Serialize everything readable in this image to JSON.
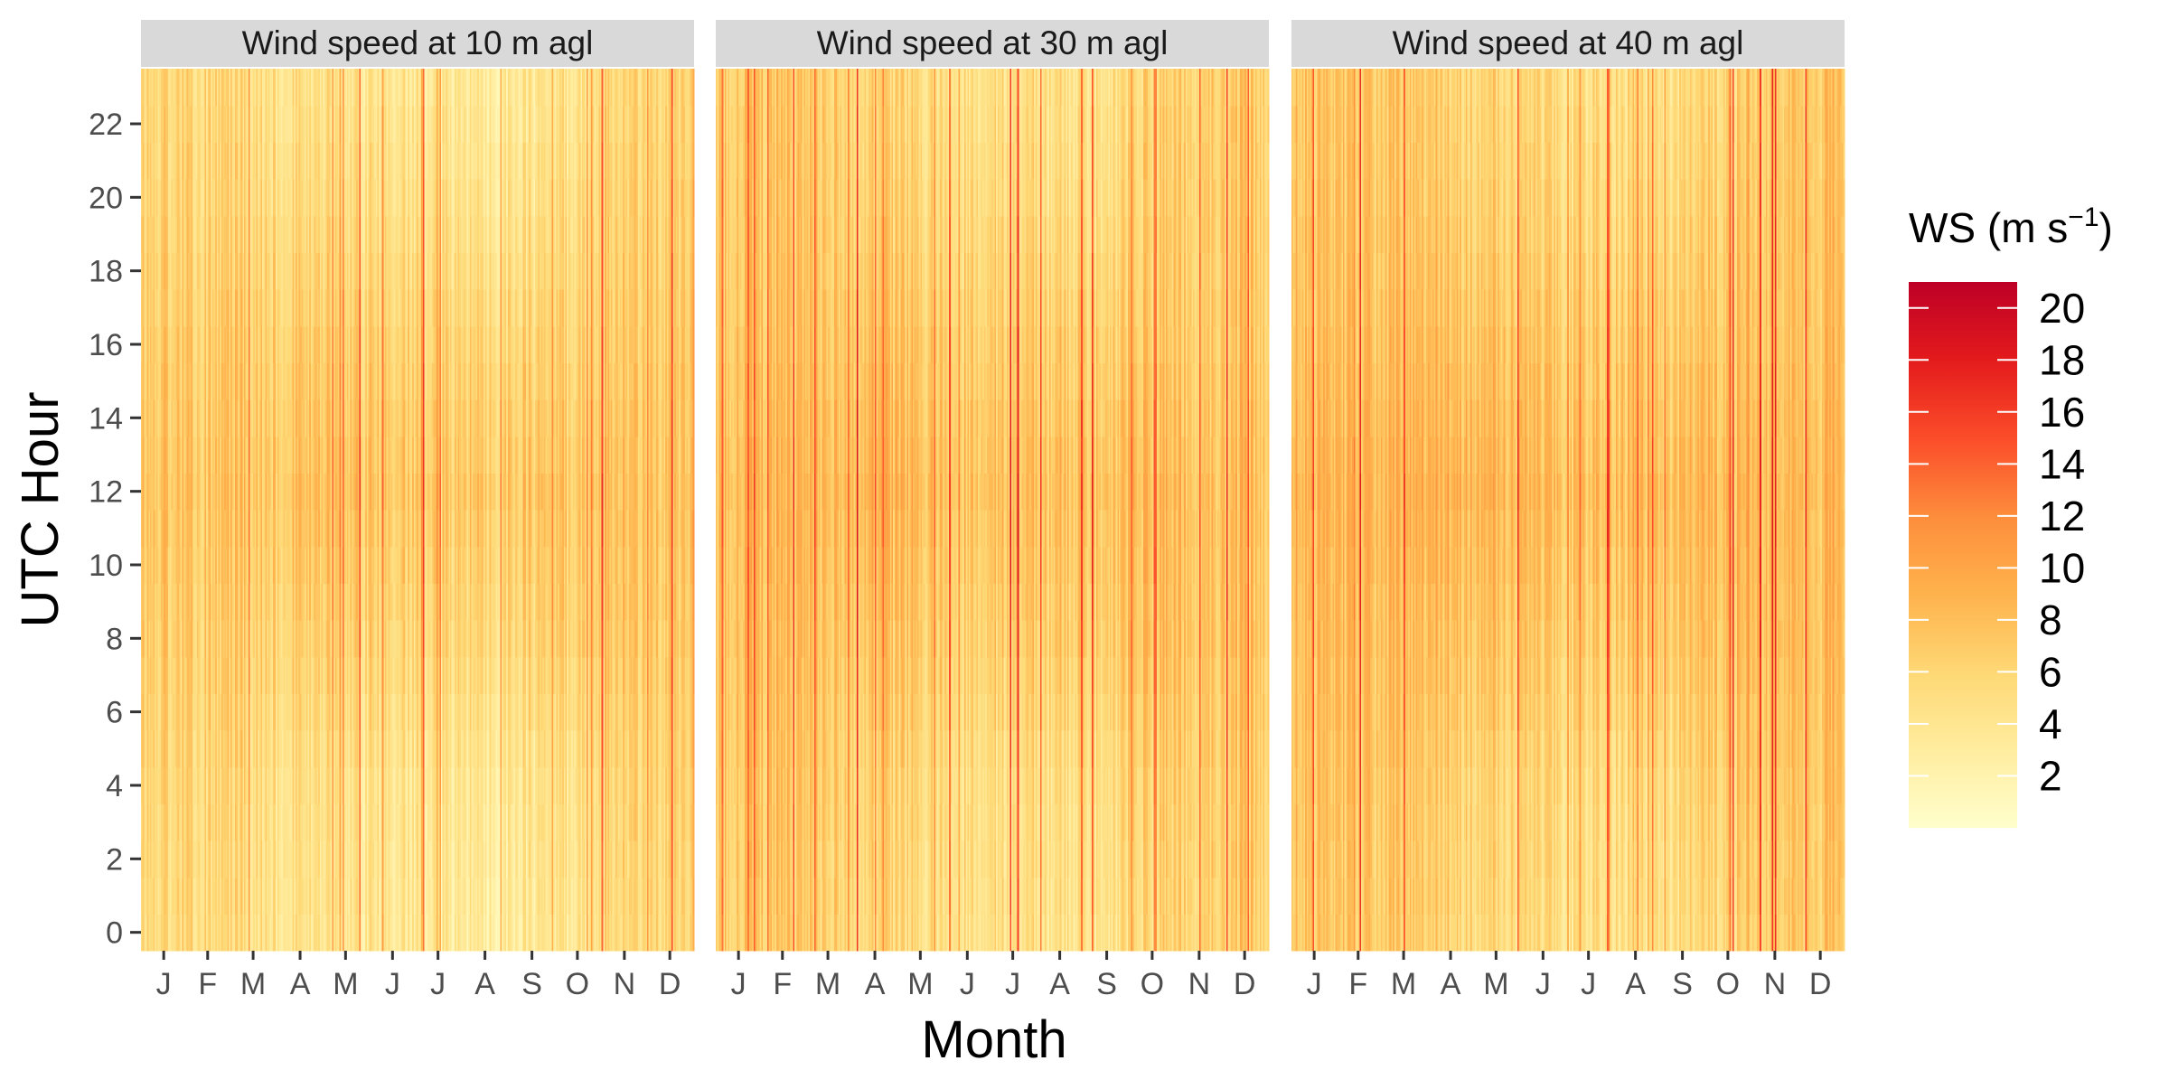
{
  "chart_data": {
    "type": "heatmap",
    "xlabel": "Month",
    "ylabel": "UTC Hour",
    "x_ticks": [
      "J",
      "F",
      "M",
      "A",
      "M",
      "J",
      "J",
      "A",
      "S",
      "O",
      "N",
      "D"
    ],
    "y_ticks": [
      0,
      2,
      4,
      6,
      8,
      10,
      12,
      14,
      16,
      18,
      20,
      22
    ],
    "y_range": [
      0,
      23
    ],
    "x_range_days": [
      1,
      366
    ],
    "legend": {
      "title": "WS (m s",
      "title_superscript": "−1",
      "title_close": ")",
      "ticks": [
        2,
        4,
        6,
        8,
        10,
        12,
        14,
        16,
        18,
        20
      ],
      "range": [
        0,
        21
      ],
      "position": "right"
    },
    "colorscale": [
      "#ffffcc",
      "#ffeda0",
      "#fed976",
      "#feb24c",
      "#fd8d3c",
      "#fc4e2a",
      "#e31a1c",
      "#bd0026"
    ],
    "panel_strip_color": "#d9d9d9",
    "panels": [
      {
        "title": "Wind speed at 10 m agl",
        "monthly_mean_by_hour": {
          "hours": [
            0,
            4,
            8,
            12,
            16,
            20,
            23
          ],
          "months": [
            [
              5.5,
              6.0,
              6.8,
              7.5,
              6.8,
              6.2,
              5.8
            ],
            [
              5.8,
              6.2,
              7.0,
              7.8,
              7.0,
              6.3,
              6.0
            ],
            [
              5.2,
              5.8,
              6.8,
              7.8,
              7.2,
              6.0,
              5.5
            ],
            [
              4.5,
              5.0,
              6.5,
              8.0,
              7.0,
              5.5,
              4.8
            ],
            [
              4.0,
              4.5,
              6.2,
              7.5,
              6.5,
              5.0,
              4.2
            ],
            [
              3.8,
              4.2,
              5.8,
              7.2,
              6.2,
              4.8,
              4.0
            ],
            [
              3.5,
              4.0,
              5.8,
              7.0,
              6.0,
              4.5,
              3.8
            ],
            [
              3.2,
              3.8,
              5.8,
              7.0,
              6.0,
              4.2,
              3.5
            ],
            [
              3.5,
              4.2,
              6.0,
              7.2,
              6.0,
              4.5,
              3.8
            ],
            [
              4.5,
              5.2,
              6.8,
              7.5,
              6.5,
              5.5,
              4.8
            ],
            [
              5.2,
              5.8,
              6.8,
              7.2,
              6.5,
              6.0,
              5.5
            ],
            [
              5.5,
              6.0,
              6.8,
              7.2,
              6.8,
              6.2,
              5.8
            ]
          ]
        }
      },
      {
        "title": "Wind speed at 30 m agl",
        "monthly_mean_by_hour": {
          "hours": [
            0,
            4,
            8,
            12,
            16,
            20,
            23
          ],
          "months": [
            [
              6.8,
              7.2,
              7.8,
              8.2,
              7.5,
              7.2,
              7.0
            ],
            [
              7.0,
              7.4,
              8.0,
              8.5,
              7.8,
              7.4,
              7.2
            ],
            [
              6.5,
              7.0,
              7.8,
              8.5,
              7.8,
              7.0,
              6.8
            ],
            [
              5.8,
              6.2,
              7.5,
              8.8,
              7.8,
              6.5,
              6.0
            ],
            [
              5.2,
              5.8,
              7.2,
              8.2,
              7.2,
              6.0,
              5.5
            ],
            [
              5.0,
              5.5,
              6.8,
              8.0,
              7.0,
              5.8,
              5.2
            ],
            [
              4.8,
              5.2,
              6.8,
              7.8,
              6.8,
              5.5,
              5.0
            ],
            [
              4.5,
              5.0,
              6.8,
              7.8,
              6.8,
              5.2,
              4.8
            ],
            [
              4.8,
              5.5,
              7.0,
              8.0,
              6.8,
              5.5,
              5.0
            ],
            [
              5.8,
              6.5,
              7.8,
              8.2,
              7.2,
              6.5,
              6.0
            ],
            [
              6.5,
              7.0,
              7.8,
              8.0,
              7.2,
              7.0,
              6.8
            ],
            [
              6.8,
              7.2,
              7.8,
              8.0,
              7.5,
              7.2,
              7.0
            ]
          ]
        }
      },
      {
        "title": "Wind speed at 40 m agl",
        "monthly_mean_by_hour": {
          "hours": [
            0,
            4,
            8,
            12,
            16,
            20,
            23
          ],
          "months": [
            [
              7.0,
              7.5,
              8.0,
              8.5,
              7.8,
              7.5,
              7.2
            ],
            [
              7.2,
              7.6,
              8.2,
              8.8,
              8.0,
              7.6,
              7.4
            ],
            [
              6.8,
              7.2,
              8.0,
              8.8,
              8.0,
              7.2,
              7.0
            ],
            [
              6.0,
              6.5,
              7.8,
              9.0,
              8.0,
              6.8,
              6.2
            ],
            [
              5.5,
              6.0,
              7.5,
              8.5,
              7.5,
              6.2,
              5.8
            ],
            [
              5.2,
              5.8,
              7.0,
              8.2,
              7.2,
              6.0,
              5.5
            ],
            [
              5.0,
              5.5,
              7.0,
              8.0,
              7.0,
              5.8,
              5.2
            ],
            [
              4.8,
              5.2,
              7.0,
              8.0,
              7.0,
              5.5,
              5.0
            ],
            [
              5.0,
              5.8,
              7.2,
              8.2,
              7.0,
              5.8,
              5.2
            ],
            [
              6.0,
              6.8,
              8.0,
              8.5,
              7.5,
              6.8,
              6.2
            ],
            [
              6.8,
              7.2,
              8.0,
              8.2,
              7.5,
              7.2,
              7.0
            ],
            [
              7.0,
              7.5,
              8.0,
              8.2,
              7.8,
              7.5,
              7.2
            ]
          ]
        }
      }
    ]
  }
}
